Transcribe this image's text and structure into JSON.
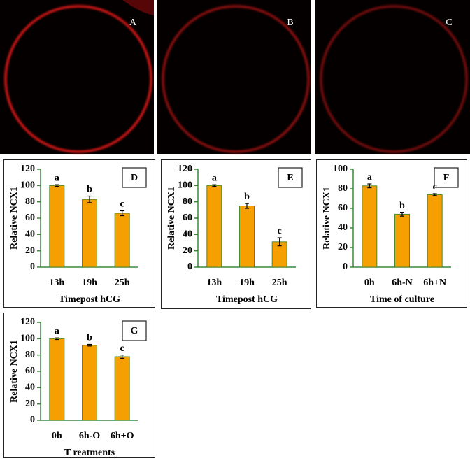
{
  "image_panels": [
    {
      "label": "A"
    },
    {
      "label": "B"
    },
    {
      "label": "C"
    }
  ],
  "chart_data": [
    {
      "type": "bar",
      "panel_label": "D",
      "ylabel": "Relative NCX1",
      "xlabel": "Timepost hCG",
      "categories": [
        "13h",
        "19h",
        "25h"
      ],
      "values": [
        100,
        83,
        66
      ],
      "errors": [
        1,
        4,
        3
      ],
      "annotations": [
        "a",
        "b",
        "c"
      ],
      "color": "#f5a000",
      "ylim": [
        0,
        120
      ],
      "yticks": [
        0,
        20,
        40,
        60,
        80,
        100,
        120
      ]
    },
    {
      "type": "bar",
      "panel_label": "E",
      "ylabel": "Relative NCX1",
      "xlabel": "Timepost hCG",
      "categories": [
        "13h",
        "19h",
        "25h"
      ],
      "values": [
        100,
        75,
        31
      ],
      "errors": [
        1,
        3,
        5
      ],
      "annotations": [
        "a",
        "b",
        "c"
      ],
      "color": "#f5a000",
      "ylim": [
        0,
        120
      ],
      "yticks": [
        0,
        20,
        40,
        60,
        80,
        100,
        120
      ]
    },
    {
      "type": "bar",
      "panel_label": "F",
      "ylabel": "Relative NCX1",
      "xlabel": "Time of culture",
      "categories": [
        "0h",
        "6h-N",
        "6h+N"
      ],
      "values": [
        83,
        54,
        74
      ],
      "errors": [
        2,
        2,
        1
      ],
      "annotations": [
        "a",
        "b",
        "c"
      ],
      "color": "#f5a000",
      "ylim": [
        0,
        100
      ],
      "yticks": [
        0,
        20,
        40,
        60,
        80,
        100
      ]
    },
    {
      "type": "bar",
      "panel_label": "G",
      "ylabel": "Relative NCX1",
      "xlabel": "T reatments",
      "categories": [
        "0h",
        "6h-O",
        "6h+O"
      ],
      "values": [
        100,
        92,
        78
      ],
      "errors": [
        1,
        1,
        2
      ],
      "annotations": [
        "a",
        "b",
        "c"
      ],
      "color": "#f5a000",
      "ylim": [
        0,
        120
      ],
      "yticks": [
        0,
        20,
        40,
        60,
        80,
        100,
        120
      ]
    }
  ]
}
